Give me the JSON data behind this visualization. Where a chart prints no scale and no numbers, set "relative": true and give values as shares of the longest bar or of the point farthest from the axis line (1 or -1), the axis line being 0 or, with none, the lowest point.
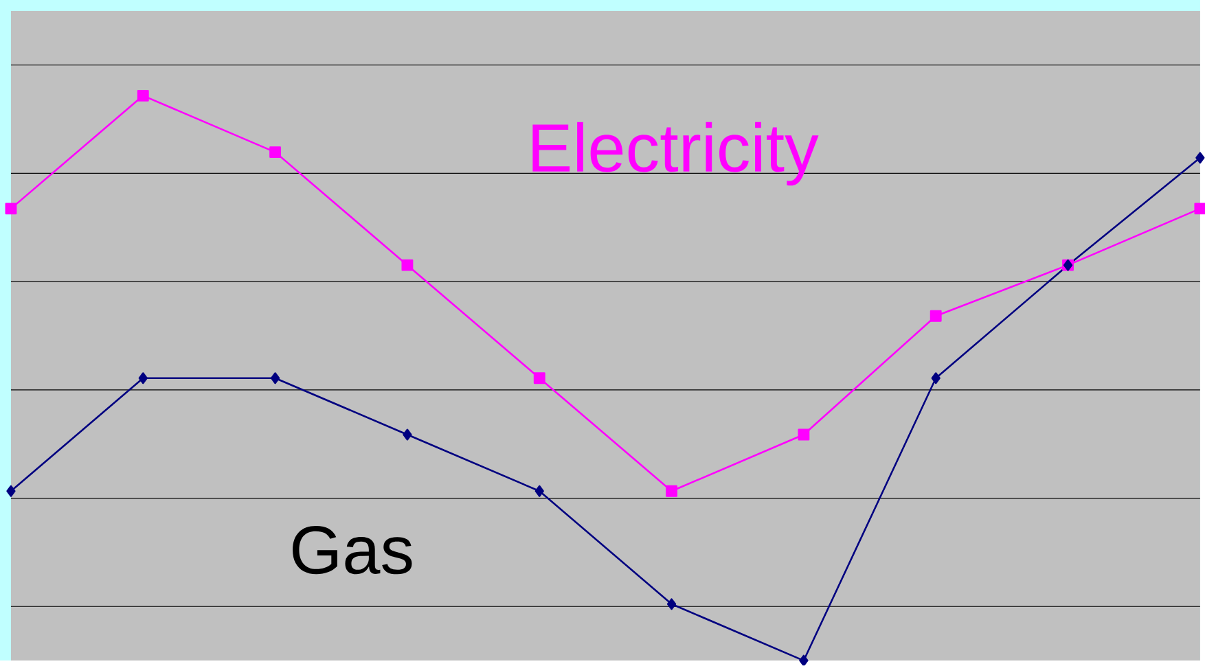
{
  "chart_data": {
    "type": "line",
    "relative": true,
    "grid": "y",
    "legend": false,
    "categories": [
      null,
      null,
      null,
      null,
      null,
      null,
      null,
      null,
      null,
      null
    ],
    "series": [
      {
        "name": "Electricity",
        "color": "#ff00ff",
        "marker": "square",
        "values": [
          0.8,
          1.0,
          0.9,
          0.7,
          0.5,
          0.3,
          0.4,
          0.61,
          0.7,
          0.8
        ]
      },
      {
        "name": "Gas",
        "color": "#000080",
        "marker": "diamond",
        "values": [
          0.3,
          0.5,
          0.5,
          0.4,
          0.3,
          0.1,
          0.0,
          0.5,
          0.7,
          0.89
        ]
      }
    ]
  }
}
